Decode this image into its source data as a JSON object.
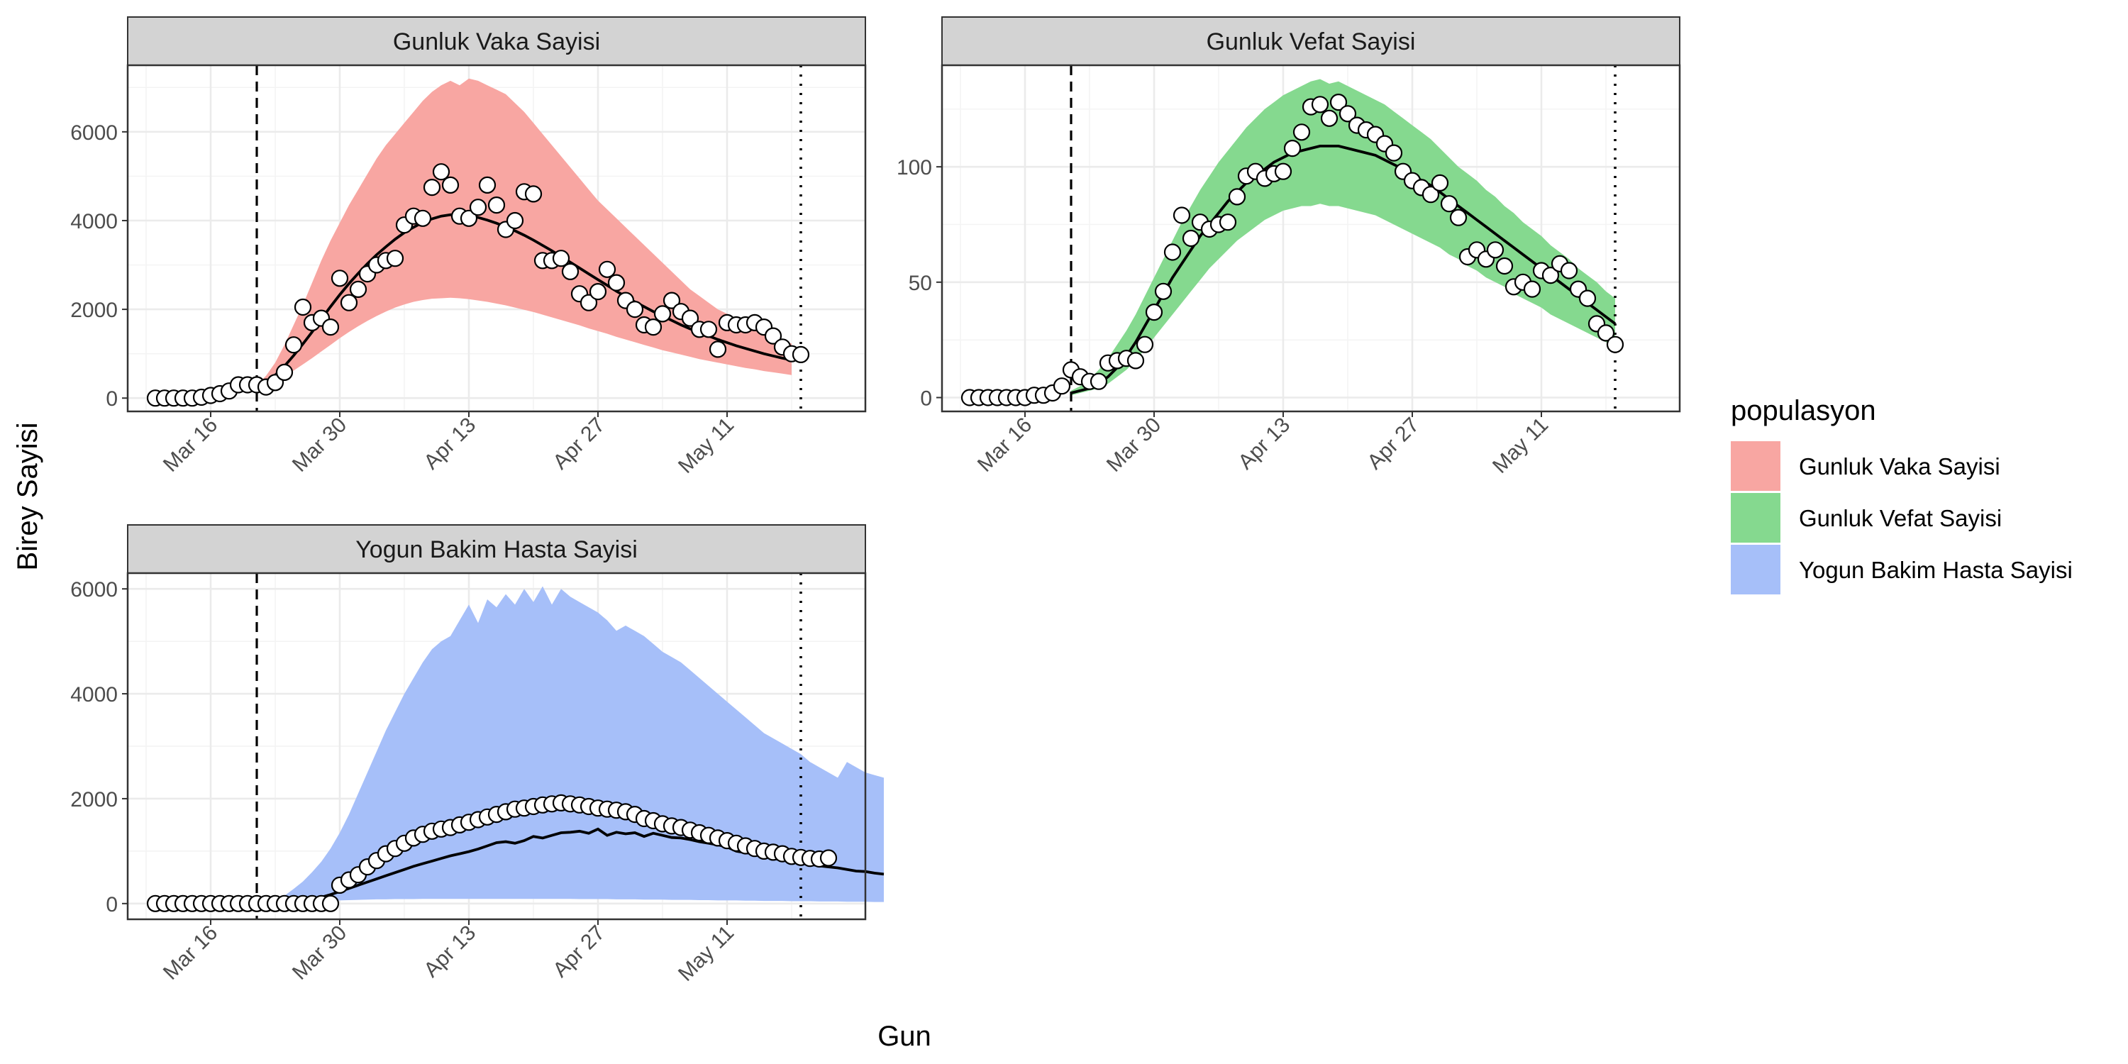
{
  "colors": {
    "vaka": "#f8a6a2",
    "vefat": "#85d98f",
    "yogun": "#a6bff9",
    "line": "#000000",
    "point_fill": "#ffffff"
  },
  "axis": {
    "xlabel": "Gun",
    "ylabel": "Birey Sayisi"
  },
  "legend": {
    "title": "populasyon",
    "position": "right",
    "items": [
      {
        "label": "Gunluk Vaka Sayisi",
        "color": "#f8a6a2"
      },
      {
        "label": "Gunluk Vefat Sayisi",
        "color": "#85d98f"
      },
      {
        "label": "Yogun Bakim Hasta Sayisi",
        "color": "#a6bff9"
      }
    ]
  },
  "chart_data": [
    {
      "type": "line",
      "title": "Gunluk Vaka Sayisi",
      "color": "#f8a6a2",
      "x_start": "2020-03-10",
      "x_ticks": [
        {
          "date": "2020-03-16",
          "label": "Mar 16"
        },
        {
          "date": "2020-03-30",
          "label": "Mar 30"
        },
        {
          "date": "2020-04-13",
          "label": "Apr 13"
        },
        {
          "date": "2020-04-27",
          "label": "Apr 27"
        },
        {
          "date": "2020-05-11",
          "label": "May 11"
        }
      ],
      "xlim": [
        "2020-03-07",
        "2020-05-26"
      ],
      "ylim": [
        -300,
        7500
      ],
      "y_ticks": [
        0,
        2000,
        4000,
        6000
      ],
      "y_tick_labels": [
        "0",
        "2000",
        "4000",
        "6000"
      ],
      "vline_dashed": "2020-03-21",
      "vline_dotted": "2020-05-19",
      "observed": [
        0,
        0,
        0,
        0,
        0,
        20,
        60,
        100,
        160,
        300,
        300,
        300,
        250,
        350,
        580,
        1200,
        2050,
        1700,
        1800,
        1600,
        2700,
        2150,
        2450,
        2800,
        3000,
        3100,
        3150,
        3900,
        4100,
        4050,
        4750,
        5100,
        4800,
        4100,
        4050,
        4300,
        4800,
        4350,
        3800,
        4000,
        4650,
        4600,
        3100,
        3100,
        3150,
        2850,
        2350,
        2150,
        2400,
        2900,
        2600,
        2200,
        2000,
        1650,
        1600,
        1900,
        2200,
        1950,
        1800,
        1550,
        1550,
        1100,
        1700,
        1650,
        1650,
        1700,
        1600,
        1400,
        1150,
        1000,
        980
      ],
      "fit_start": "2020-03-21",
      "fit": [
        260,
        360,
        520,
        720,
        960,
        1220,
        1490,
        1780,
        2060,
        2330,
        2580,
        2810,
        3030,
        3230,
        3410,
        3580,
        3730,
        3850,
        3960,
        4040,
        4100,
        4130,
        4130,
        4110,
        4070,
        4010,
        3940,
        3860,
        3770,
        3670,
        3560,
        3440,
        3320,
        3190,
        3060,
        2930,
        2800,
        2670,
        2540,
        2410,
        2290,
        2170,
        2060,
        1950,
        1850,
        1750,
        1650,
        1560,
        1480,
        1400,
        1320,
        1250,
        1180,
        1120,
        1060,
        1000,
        950,
        900,
        860
      ],
      "band_upper": [
        300,
        500,
        800,
        1200,
        1650,
        2100,
        2600,
        3100,
        3550,
        3950,
        4350,
        4700,
        5050,
        5400,
        5700,
        5950,
        6200,
        6450,
        6700,
        6900,
        7050,
        7150,
        7050,
        7200,
        7150,
        7050,
        6950,
        6850,
        6650,
        6450,
        6200,
        5950,
        5700,
        5450,
        5200,
        4950,
        4700,
        4450,
        4250,
        4050,
        3850,
        3650,
        3450,
        3250,
        3050,
        2850,
        2650,
        2450,
        2300,
        2150,
        2000,
        1900,
        1800,
        1700,
        1600,
        1500,
        1400,
        1300,
        1230
      ],
      "band_lower": [
        250,
        300,
        400,
        500,
        620,
        760,
        900,
        1050,
        1200,
        1350,
        1490,
        1620,
        1740,
        1850,
        1950,
        2040,
        2110,
        2170,
        2210,
        2240,
        2250,
        2260,
        2250,
        2230,
        2200,
        2170,
        2130,
        2090,
        2040,
        1990,
        1940,
        1880,
        1820,
        1760,
        1700,
        1640,
        1570,
        1510,
        1450,
        1380,
        1320,
        1260,
        1200,
        1140,
        1080,
        1030,
        980,
        930,
        880,
        840,
        800,
        760,
        720,
        680,
        650,
        610,
        580,
        550,
        520
      ]
    },
    {
      "type": "line",
      "title": "Gunluk Vefat Sayisi",
      "color": "#85d98f",
      "x_start": "2020-03-10",
      "x_ticks": [
        {
          "date": "2020-03-16",
          "label": "Mar 16"
        },
        {
          "date": "2020-03-30",
          "label": "Mar 30"
        },
        {
          "date": "2020-04-13",
          "label": "Apr 13"
        },
        {
          "date": "2020-04-27",
          "label": "Apr 27"
        },
        {
          "date": "2020-05-11",
          "label": "May 11"
        }
      ],
      "xlim": [
        "2020-03-07",
        "2020-05-26"
      ],
      "ylim": [
        -6,
        144
      ],
      "y_ticks": [
        0,
        50,
        100
      ],
      "y_tick_labels": [
        "0",
        "50",
        "100"
      ],
      "vline_dashed": "2020-03-21",
      "vline_dotted": "2020-05-19",
      "observed": [
        0,
        0,
        0,
        0,
        0,
        0,
        0,
        1,
        1,
        2,
        5,
        12,
        9,
        7,
        7,
        15,
        16,
        17,
        16,
        23,
        37,
        46,
        63,
        79,
        69,
        76,
        73,
        75,
        76,
        87,
        96,
        98,
        95,
        97,
        98,
        108,
        115,
        126,
        127,
        121,
        128,
        123,
        118,
        116,
        114,
        110,
        106,
        98,
        94,
        91,
        88,
        93,
        84,
        78,
        61,
        64,
        60,
        64,
        57,
        48,
        50,
        47,
        55,
        53,
        58,
        55,
        47,
        43,
        32,
        28,
        23
      ],
      "fit_start": "2020-03-21",
      "fit": [
        2,
        3,
        4,
        6,
        9,
        13,
        18,
        24,
        31,
        38,
        45,
        52,
        58,
        64,
        70,
        75,
        80,
        85,
        89,
        93,
        96,
        99,
        102,
        104,
        106,
        107,
        108,
        109,
        109,
        109,
        108,
        107,
        106,
        105,
        103,
        101,
        99,
        97,
        94,
        92,
        89,
        86,
        83,
        80,
        77,
        74,
        71,
        68,
        65,
        62,
        59,
        56,
        53,
        50,
        47,
        44,
        41,
        38,
        35,
        32
      ],
      "band_upper": [
        3,
        5,
        8,
        12,
        17,
        23,
        29,
        36,
        44,
        52,
        60,
        68,
        76,
        83,
        90,
        96,
        102,
        107,
        112,
        117,
        121,
        125,
        128,
        131,
        133,
        135,
        137,
        138,
        136,
        137,
        135,
        133,
        131,
        129,
        127,
        124,
        121,
        118,
        115,
        112,
        108,
        104,
        100,
        97,
        94,
        90,
        87,
        83,
        80,
        76,
        73,
        70,
        66,
        63,
        60,
        56,
        53,
        50,
        46,
        43
      ],
      "band_lower": [
        1,
        2,
        3,
        4,
        6,
        9,
        12,
        16,
        21,
        26,
        31,
        36,
        41,
        46,
        51,
        56,
        60,
        64,
        68,
        71,
        74,
        77,
        79,
        81,
        82,
        83,
        83,
        84,
        83,
        83,
        82,
        81,
        80,
        79,
        77,
        75,
        73,
        71,
        69,
        67,
        65,
        62,
        60,
        57,
        55,
        52,
        50,
        48,
        45,
        43,
        41,
        39,
        36,
        34,
        32,
        30,
        28,
        26,
        24,
        22
      ]
    },
    {
      "type": "line",
      "title": "Yogun Bakim Hasta Sayisi",
      "color": "#a6bff9",
      "x_start": "2020-03-10",
      "x_ticks": [
        {
          "date": "2020-03-16",
          "label": "Mar 16"
        },
        {
          "date": "2020-03-30",
          "label": "Mar 30"
        },
        {
          "date": "2020-04-13",
          "label": "Apr 13"
        },
        {
          "date": "2020-04-27",
          "label": "Apr 27"
        },
        {
          "date": "2020-05-11",
          "label": "May 11"
        }
      ],
      "xlim": [
        "2020-03-07",
        "2020-05-26"
      ],
      "ylim": [
        -300,
        6300
      ],
      "y_ticks": [
        0,
        2000,
        4000,
        6000
      ],
      "y_tick_labels": [
        "0",
        "2000",
        "4000",
        "6000"
      ],
      "vline_dashed": "2020-03-21",
      "vline_dotted": "2020-05-19",
      "observed": [
        0,
        0,
        0,
        0,
        0,
        0,
        0,
        0,
        0,
        0,
        0,
        0,
        0,
        0,
        0,
        0,
        0,
        0,
        0,
        0,
        350,
        450,
        550,
        700,
        820,
        950,
        1050,
        1150,
        1250,
        1320,
        1380,
        1420,
        1450,
        1500,
        1550,
        1600,
        1650,
        1700,
        1750,
        1800,
        1820,
        1850,
        1880,
        1900,
        1920,
        1900,
        1880,
        1850,
        1820,
        1800,
        1780,
        1750,
        1700,
        1620,
        1580,
        1520,
        1480,
        1450,
        1400,
        1350,
        1300,
        1250,
        1200,
        1150,
        1100,
        1050,
        1000,
        980,
        950,
        900,
        880,
        860,
        850,
        870
      ],
      "fit_start": "2020-03-21",
      "fit": [
        0,
        0,
        5,
        15,
        30,
        50,
        80,
        120,
        170,
        230,
        290,
        350,
        410,
        470,
        530,
        590,
        650,
        710,
        760,
        810,
        860,
        910,
        950,
        990,
        1040,
        1100,
        1160,
        1180,
        1150,
        1200,
        1280,
        1250,
        1300,
        1350,
        1360,
        1380,
        1340,
        1420,
        1300,
        1360,
        1330,
        1350,
        1280,
        1340,
        1300,
        1260,
        1250,
        1220,
        1180,
        1150,
        1120,
        1080,
        1000,
        970,
        950,
        900,
        860,
        830,
        800,
        780,
        750,
        720,
        700,
        680,
        650,
        620,
        610,
        580,
        560
      ],
      "band_upper": [
        0,
        0,
        60,
        150,
        280,
        420,
        600,
        800,
        1050,
        1350,
        1700,
        2100,
        2500,
        2900,
        3300,
        3650,
        4000,
        4300,
        4600,
        4850,
        5000,
        5100,
        5400,
        5700,
        5350,
        5800,
        5650,
        5900,
        5700,
        6000,
        5750,
        6050,
        5700,
        6000,
        5850,
        5750,
        5650,
        5550,
        5400,
        5200,
        5300,
        5200,
        5100,
        4950,
        4800,
        4700,
        4600,
        4450,
        4300,
        4150,
        4000,
        3850,
        3700,
        3550,
        3400,
        3250,
        3150,
        3050,
        2950,
        2850,
        2700,
        2600,
        2500,
        2400,
        2700,
        2600,
        2500,
        2450,
        2400
      ],
      "band_lower": [
        0,
        0,
        0,
        5,
        10,
        20,
        30,
        40,
        50,
        60,
        65,
        70,
        75,
        80,
        80,
        85,
        85,
        85,
        90,
        90,
        90,
        90,
        90,
        90,
        90,
        90,
        90,
        90,
        90,
        90,
        90,
        90,
        90,
        90,
        90,
        85,
        85,
        85,
        85,
        80,
        80,
        80,
        75,
        75,
        75,
        70,
        70,
        70,
        65,
        65,
        60,
        60,
        60,
        55,
        55,
        50,
        50,
        50,
        45,
        45,
        45,
        40,
        40,
        40,
        35,
        35,
        35,
        30,
        30
      ]
    }
  ]
}
